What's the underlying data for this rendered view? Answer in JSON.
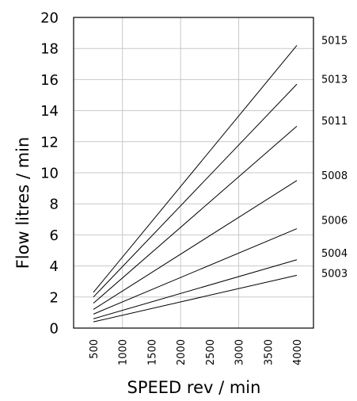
{
  "chart_data": {
    "type": "line",
    "title": "",
    "xlabel": "SPEED rev / min",
    "ylabel": "Flow litres / min",
    "xlim": [
      500,
      4000
    ],
    "ylim": [
      0,
      20
    ],
    "x_ticks": [
      "500",
      "1000",
      "1500",
      "2000",
      "2500",
      "3000",
      "3500",
      "4000"
    ],
    "y_ticks": [
      "0",
      "2",
      "4",
      "6",
      "8",
      "10",
      "12",
      "14",
      "16",
      "18",
      "20"
    ],
    "grid": true,
    "line_color": "#000000",
    "grid_color": "#c8c8c8",
    "series": [
      {
        "name": "5015",
        "x": [
          500,
          4000
        ],
        "y": [
          2.3,
          18.2
        ]
      },
      {
        "name": "5013",
        "x": [
          500,
          4000
        ],
        "y": [
          2.0,
          15.7
        ]
      },
      {
        "name": "5011",
        "x": [
          500,
          4000
        ],
        "y": [
          1.6,
          13.0
        ]
      },
      {
        "name": "5008",
        "x": [
          500,
          4000
        ],
        "y": [
          1.2,
          9.5
        ]
      },
      {
        "name": "5006",
        "x": [
          500,
          4000
        ],
        "y": [
          0.9,
          6.4
        ]
      },
      {
        "name": "5004",
        "x": [
          500,
          4000
        ],
        "y": [
          0.6,
          4.4
        ]
      },
      {
        "name": "5003",
        "x": [
          500,
          4000
        ],
        "y": [
          0.4,
          3.4
        ]
      }
    ],
    "series_label_y": [
      18.2,
      15.7,
      13.0,
      9.5,
      6.6,
      4.5,
      3.2
    ]
  }
}
